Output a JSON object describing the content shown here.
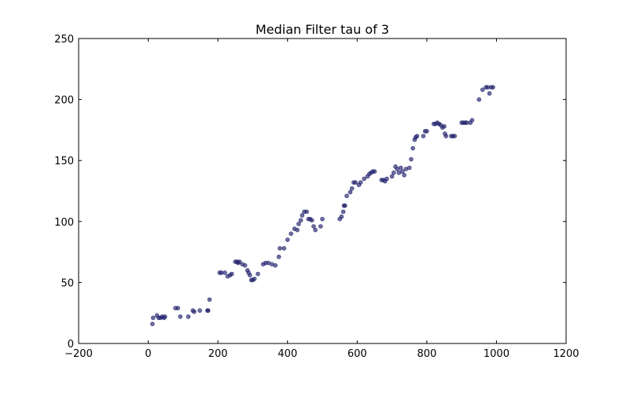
{
  "chart_data": {
    "type": "scatter",
    "title": "Median Filter tau of 3",
    "xlabel": "",
    "ylabel": "",
    "xlim": [
      -200,
      1200
    ],
    "ylim": [
      0,
      250
    ],
    "xticks": [
      "−200",
      "0",
      "200",
      "400",
      "600",
      "800",
      "1000",
      "1200"
    ],
    "yticks": [
      "0",
      "50",
      "100",
      "150",
      "200",
      "250"
    ],
    "grid": false,
    "marker_color": "#1f1f6b",
    "series": [
      {
        "x": [
          12,
          14,
          25,
          30,
          35,
          40,
          45,
          48,
          78,
          85,
          92,
          115,
          128,
          132,
          148,
          170,
          172,
          176,
          205,
          210,
          220,
          228,
          235,
          240,
          250,
          255,
          258,
          262,
          270,
          278,
          285,
          288,
          292,
          296,
          300,
          305,
          315,
          330,
          337,
          345,
          355,
          365,
          375,
          378,
          390,
          400,
          410,
          420,
          428,
          432,
          438,
          442,
          448,
          455,
          460,
          465,
          470,
          475,
          480,
          495,
          500,
          550,
          555,
          560,
          562,
          565,
          570,
          580,
          585,
          590,
          595,
          605,
          610,
          620,
          630,
          635,
          640,
          645,
          650,
          670,
          675,
          680,
          685,
          700,
          705,
          710,
          715,
          720,
          725,
          730,
          735,
          740,
          750,
          755,
          760,
          765,
          768,
          772,
          790,
          795,
          800,
          820,
          825,
          830,
          835,
          840,
          845,
          850,
          852,
          855,
          870,
          875,
          880,
          900,
          905,
          910,
          915,
          925,
          930,
          950,
          960,
          970,
          975,
          980,
          985,
          990
        ]
      },
      {
        "y": [
          16,
          21,
          23,
          21,
          21,
          22,
          21,
          22,
          29,
          29,
          22,
          22,
          27,
          26,
          27,
          27,
          27,
          36,
          58,
          58,
          58,
          55,
          56,
          57,
          67,
          67,
          66,
          67,
          65,
          64,
          60,
          58,
          56,
          52,
          52,
          53,
          57,
          65,
          66,
          66,
          65,
          64,
          71,
          78,
          78,
          85,
          90,
          94,
          93,
          98,
          101,
          105,
          108,
          108,
          102,
          102,
          101,
          96,
          93,
          96,
          102,
          102,
          104,
          108,
          113,
          113,
          121,
          124,
          127,
          132,
          132,
          130,
          132,
          135,
          137,
          139,
          140,
          141,
          141,
          134,
          134,
          133,
          135,
          137,
          140,
          145,
          143,
          140,
          144,
          141,
          138,
          143,
          144,
          151,
          160,
          167,
          169,
          170,
          170,
          174,
          174,
          180,
          180,
          181,
          180,
          179,
          177,
          178,
          172,
          170,
          170,
          170,
          170,
          181,
          181,
          181,
          181,
          181,
          183,
          200,
          208,
          210,
          210,
          205,
          210,
          210
        ]
      }
    ]
  }
}
